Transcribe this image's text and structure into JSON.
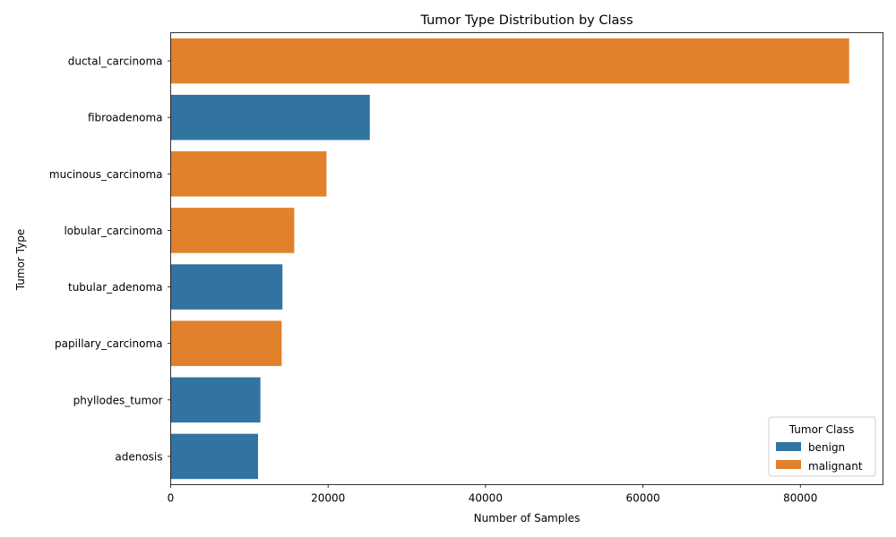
{
  "chart_data": {
    "type": "bar",
    "orientation": "horizontal",
    "title": "Tumor Type Distribution by Class",
    "xlabel": "Number of Samples",
    "ylabel": "Tumor Type",
    "xlim": [
      0,
      90500
    ],
    "xticks": [
      0,
      20000,
      40000,
      60000,
      80000
    ],
    "grid": false,
    "legend": {
      "title": "Tumor Class",
      "placement": "lower-right",
      "entries": [
        {
          "name": "benign",
          "color": "#3274a1"
        },
        {
          "name": "malignant",
          "color": "#e1812c"
        }
      ]
    },
    "bars": [
      {
        "category": "ductal_carcinoma",
        "value": 86200,
        "class": "malignant"
      },
      {
        "category": "fibroadenoma",
        "value": 25300,
        "class": "benign"
      },
      {
        "category": "mucinous_carcinoma",
        "value": 19800,
        "class": "malignant"
      },
      {
        "category": "lobular_carcinoma",
        "value": 15700,
        "class": "malignant"
      },
      {
        "category": "tubular_adenoma",
        "value": 14200,
        "class": "benign"
      },
      {
        "category": "papillary_carcinoma",
        "value": 14100,
        "class": "malignant"
      },
      {
        "category": "phyllodes_tumor",
        "value": 11400,
        "class": "benign"
      },
      {
        "category": "adenosis",
        "value": 11100,
        "class": "benign"
      }
    ]
  }
}
